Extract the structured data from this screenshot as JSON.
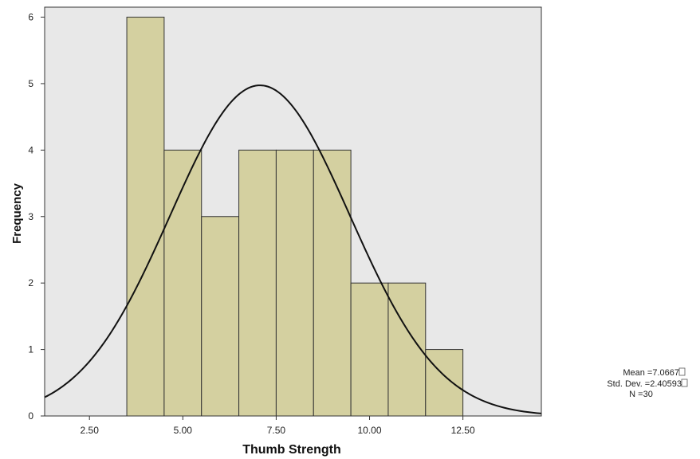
{
  "chart_data": {
    "type": "bar",
    "subtype": "histogram",
    "xlabel": "Thumb Strength",
    "ylabel": "Frequency",
    "xlim": [
      1.3,
      14.6
    ],
    "ylim": [
      0,
      6.15
    ],
    "x_ticks": [
      2.5,
      5.0,
      7.5,
      10.0,
      12.5
    ],
    "x_tick_labels": [
      "2.50",
      "5.00",
      "7.50",
      "10.00",
      "12.50"
    ],
    "y_ticks": [
      0,
      1,
      2,
      3,
      4,
      5,
      6
    ],
    "y_tick_labels": [
      "0",
      "1",
      "2",
      "3",
      "4",
      "5",
      "6"
    ],
    "bins": [
      {
        "from": 3.5,
        "to": 4.5,
        "count": 6
      },
      {
        "from": 4.5,
        "to": 5.5,
        "count": 4
      },
      {
        "from": 5.5,
        "to": 6.5,
        "count": 3
      },
      {
        "from": 6.5,
        "to": 7.5,
        "count": 4
      },
      {
        "from": 7.5,
        "to": 8.5,
        "count": 4
      },
      {
        "from": 8.5,
        "to": 9.5,
        "count": 4
      },
      {
        "from": 9.5,
        "to": 10.5,
        "count": 2
      },
      {
        "from": 10.5,
        "to": 11.5,
        "count": 2
      },
      {
        "from": 11.5,
        "to": 12.5,
        "count": 1
      }
    ],
    "normal_curve": {
      "mean": 7.0667,
      "std_dev": 2.40593,
      "n": 30,
      "bin_width": 1
    },
    "grid": false,
    "colors": {
      "plot_background": "#e8e8e8",
      "bar_fill": "#d4d0a0",
      "bar_stroke": "#333333",
      "curve": "#111111"
    }
  },
  "stats": {
    "mean": "Mean =7.0667",
    "std_dev": "Std. Dev. =2.40593",
    "n": "N =30"
  }
}
